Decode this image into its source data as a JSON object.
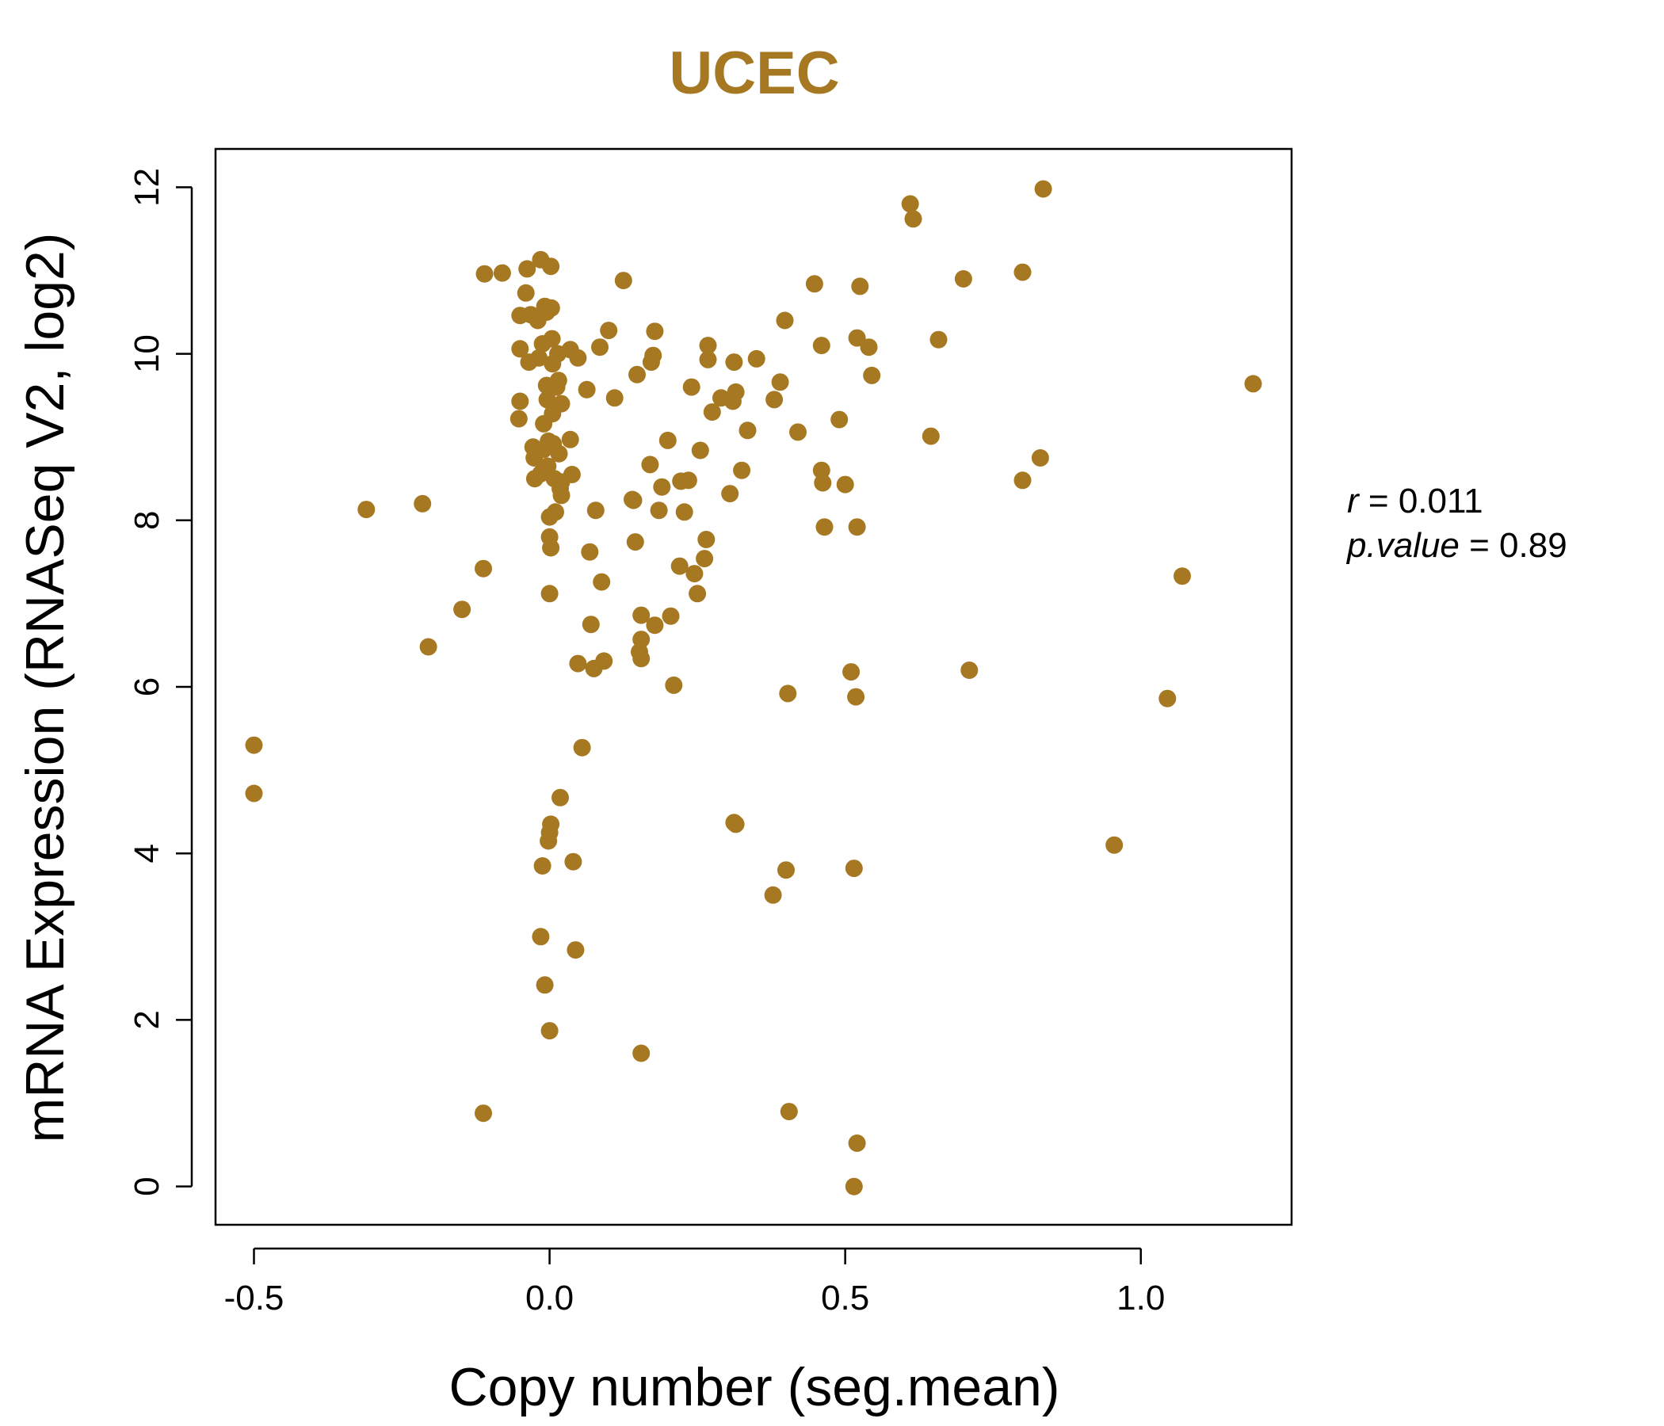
{
  "chart_data": {
    "type": "scatter",
    "title": "UCEC",
    "xlabel": "Copy number (seg.mean)",
    "ylabel": "mRNA Expression (RNASeq V2, log2)",
    "xlim": [
      -0.565,
      1.255
    ],
    "ylim": [
      -0.46,
      12.46
    ],
    "x_ticks": [
      -0.5,
      0.0,
      0.5,
      1.0
    ],
    "x_tick_labels": [
      "-0.5",
      "0.0",
      "0.5",
      "1.0"
    ],
    "y_ticks": [
      0,
      2,
      4,
      6,
      8,
      10,
      12
    ],
    "y_tick_labels": [
      "0",
      "2",
      "4",
      "6",
      "8",
      "10",
      "12"
    ],
    "grid": false,
    "legend": "none",
    "color": "#A67822",
    "stats": {
      "r_label": "r",
      "r_value": "0.011",
      "p_label": "p.value",
      "p_value": "0.89"
    },
    "points": [
      [
        -0.5,
        5.3
      ],
      [
        -0.5,
        4.72
      ],
      [
        -0.31,
        8.13
      ],
      [
        -0.215,
        8.2
      ],
      [
        -0.205,
        6.48
      ],
      [
        -0.148,
        6.93
      ],
      [
        -0.112,
        7.42
      ],
      [
        -0.11,
        10.96
      ],
      [
        -0.112,
        0.88
      ],
      [
        -0.08,
        10.97
      ],
      [
        -0.04,
        10.73
      ],
      [
        -0.038,
        11.02
      ],
      [
        -0.05,
        10.46
      ],
      [
        -0.05,
        10.06
      ],
      [
        -0.05,
        9.43
      ],
      [
        -0.052,
        9.22
      ],
      [
        -0.035,
        9.9
      ],
      [
        -0.032,
        10.47
      ],
      [
        -0.028,
        8.88
      ],
      [
        -0.026,
        8.75
      ],
      [
        -0.025,
        8.5
      ],
      [
        -0.02,
        10.4
      ],
      [
        -0.018,
        9.95
      ],
      [
        -0.015,
        11.13
      ],
      [
        -0.015,
        8.56
      ],
      [
        -0.012,
        10.12
      ],
      [
        -0.01,
        9.16
      ],
      [
        -0.01,
        8.85
      ],
      [
        -0.008,
        10.57
      ],
      [
        -0.005,
        10.5
      ],
      [
        -0.005,
        9.62
      ],
      [
        -0.004,
        9.45
      ],
      [
        -0.003,
        8.65
      ],
      [
        -0.002,
        8.95
      ],
      [
        0.0,
        8.04
      ],
      [
        0.0,
        7.8
      ],
      [
        0.002,
        11.05
      ],
      [
        0.003,
        10.55
      ],
      [
        0.004,
        10.18
      ],
      [
        0.005,
        9.88
      ],
      [
        0.005,
        9.28
      ],
      [
        0.006,
        8.92
      ],
      [
        0.008,
        8.5
      ],
      [
        0.01,
        8.1
      ],
      [
        0.012,
        9.6
      ],
      [
        0.014,
        10.0
      ],
      [
        0.015,
        9.68
      ],
      [
        0.016,
        8.8
      ],
      [
        0.018,
        8.38
      ],
      [
        0.02,
        9.4
      ],
      [
        0.02,
        8.46
      ],
      [
        0.02,
        8.3
      ],
      [
        0.002,
        7.67
      ],
      [
        0.0,
        7.12
      ],
      [
        0.018,
        4.67
      ],
      [
        0.002,
        4.35
      ],
      [
        0.0,
        4.25
      ],
      [
        -0.002,
        4.15
      ],
      [
        -0.012,
        3.85
      ],
      [
        -0.015,
        3.0
      ],
      [
        -0.008,
        2.42
      ],
      [
        0.0,
        1.87
      ],
      [
        0.035,
        10.05
      ],
      [
        0.035,
        8.97
      ],
      [
        0.038,
        8.55
      ],
      [
        0.048,
        9.95
      ],
      [
        0.048,
        6.28
      ],
      [
        0.055,
        5.27
      ],
      [
        0.063,
        9.57
      ],
      [
        0.068,
        7.62
      ],
      [
        0.07,
        6.75
      ],
      [
        0.075,
        6.22
      ],
      [
        0.078,
        8.12
      ],
      [
        0.085,
        10.08
      ],
      [
        0.088,
        7.26
      ],
      [
        0.092,
        6.31
      ],
      [
        0.1,
        10.28
      ],
      [
        0.11,
        9.47
      ],
      [
        0.125,
        10.88
      ],
      [
        0.04,
        3.9
      ],
      [
        0.044,
        2.84
      ],
      [
        0.14,
        8.25
      ],
      [
        0.142,
        8.24
      ],
      [
        0.145,
        7.74
      ],
      [
        0.148,
        9.75
      ],
      [
        0.155,
        6.86
      ],
      [
        0.155,
        6.57
      ],
      [
        0.152,
        6.42
      ],
      [
        0.155,
        6.34
      ],
      [
        0.155,
        1.6
      ],
      [
        0.17,
        8.67
      ],
      [
        0.172,
        9.9
      ],
      [
        0.175,
        9.98
      ],
      [
        0.178,
        10.27
      ],
      [
        0.178,
        6.74
      ],
      [
        0.185,
        8.12
      ],
      [
        0.19,
        8.4
      ],
      [
        0.2,
        8.96
      ],
      [
        0.205,
        6.85
      ],
      [
        0.21,
        6.02
      ],
      [
        0.22,
        7.45
      ],
      [
        0.222,
        8.47
      ],
      [
        0.228,
        8.1
      ],
      [
        0.235,
        8.48
      ],
      [
        0.24,
        9.6
      ],
      [
        0.245,
        7.36
      ],
      [
        0.25,
        7.12
      ],
      [
        0.255,
        8.84
      ],
      [
        0.262,
        7.54
      ],
      [
        0.265,
        7.77
      ],
      [
        0.268,
        10.1
      ],
      [
        0.268,
        9.93
      ],
      [
        0.275,
        9.3
      ],
      [
        0.29,
        9.47
      ],
      [
        0.305,
        8.32
      ],
      [
        0.31,
        9.43
      ],
      [
        0.312,
        9.9
      ],
      [
        0.315,
        9.54
      ],
      [
        0.325,
        8.6
      ],
      [
        0.335,
        9.08
      ],
      [
        0.35,
        9.94
      ],
      [
        0.312,
        4.37
      ],
      [
        0.315,
        4.35
      ],
      [
        0.38,
        9.45
      ],
      [
        0.39,
        9.66
      ],
      [
        0.398,
        10.4
      ],
      [
        0.4,
        3.8
      ],
      [
        0.403,
        5.92
      ],
      [
        0.405,
        0.9
      ],
      [
        0.378,
        3.5
      ],
      [
        0.42,
        9.06
      ],
      [
        0.448,
        10.84
      ],
      [
        0.46,
        10.1
      ],
      [
        0.46,
        8.6
      ],
      [
        0.462,
        8.45
      ],
      [
        0.465,
        7.92
      ],
      [
        0.49,
        9.21
      ],
      [
        0.5,
        8.43
      ],
      [
        0.51,
        6.18
      ],
      [
        0.515,
        0.0
      ],
      [
        0.515,
        3.82
      ],
      [
        0.518,
        5.88
      ],
      [
        0.52,
        10.19
      ],
      [
        0.52,
        7.92
      ],
      [
        0.52,
        0.52
      ],
      [
        0.525,
        10.81
      ],
      [
        0.54,
        10.08
      ],
      [
        0.545,
        9.74
      ],
      [
        0.61,
        11.8
      ],
      [
        0.615,
        11.62
      ],
      [
        0.645,
        9.01
      ],
      [
        0.658,
        10.17
      ],
      [
        0.7,
        10.9
      ],
      [
        0.71,
        6.2
      ],
      [
        0.8,
        10.98
      ],
      [
        0.8,
        8.48
      ],
      [
        0.83,
        8.75
      ],
      [
        0.835,
        11.98
      ],
      [
        0.955,
        4.1
      ],
      [
        1.045,
        5.86
      ],
      [
        1.07,
        7.33
      ],
      [
        1.19,
        9.64
      ]
    ]
  }
}
